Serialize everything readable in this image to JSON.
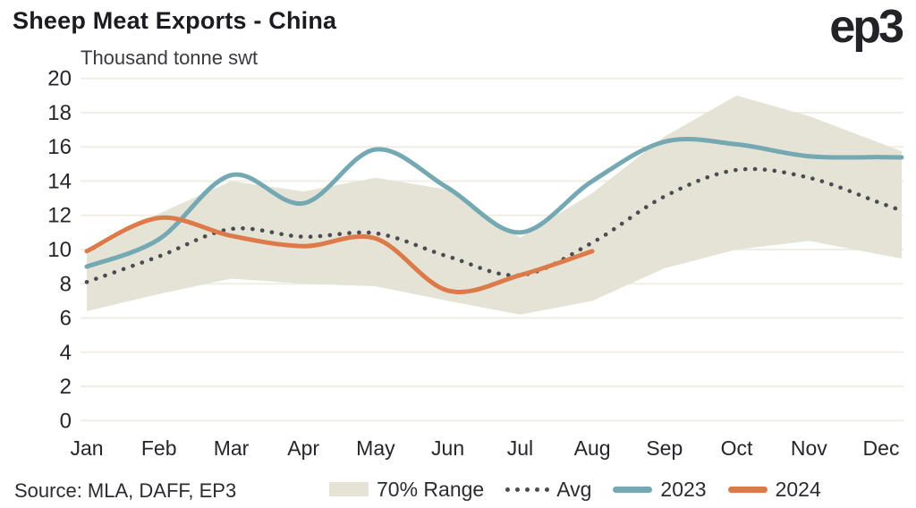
{
  "header": {
    "title": "Sheep Meat Exports - China",
    "logo": "ep3"
  },
  "source": "Source: MLA, DAFF, EP3",
  "chart_data": {
    "type": "line",
    "title": "Sheep Meat Exports - China",
    "ylabel": "Thousand tonne swt",
    "xlabel": "",
    "ylim": [
      0,
      20
    ],
    "ytick_step": 2,
    "grid": true,
    "legend_position": "bottom",
    "categories": [
      "Jan",
      "Feb",
      "Mar",
      "Apr",
      "May",
      "Jun",
      "Jul",
      "Aug",
      "Sep",
      "Oct",
      "Nov",
      "Dec"
    ],
    "band": {
      "name": "70% Range",
      "color": "#e4e3d5",
      "low": [
        6.4,
        7.4,
        8.3,
        8.0,
        7.85,
        7.0,
        6.2,
        7.0,
        8.9,
        10.0,
        10.5,
        9.7
      ],
      "high": [
        9.7,
        12.1,
        14.0,
        13.4,
        14.2,
        13.5,
        10.7,
        13.3,
        16.6,
        19.0,
        17.8,
        16.2
      ]
    },
    "series": [
      {
        "name": "Avg",
        "style": "dotted",
        "color": "#4b4b54",
        "values": [
          8.1,
          9.6,
          11.2,
          10.75,
          10.95,
          9.6,
          8.5,
          10.4,
          13.1,
          14.65,
          14.2,
          12.7
        ]
      },
      {
        "name": "2023",
        "style": "solid",
        "color": "#74a8b2",
        "values": [
          9.0,
          10.6,
          14.35,
          12.7,
          15.85,
          13.6,
          11.0,
          14.0,
          16.3,
          16.15,
          15.45,
          15.4
        ]
      },
      {
        "name": "2024",
        "style": "solid",
        "color": "#dd7a49",
        "values": [
          9.9,
          11.85,
          10.8,
          10.2,
          10.65,
          7.6,
          8.5,
          9.9,
          null,
          null,
          null,
          null
        ]
      }
    ],
    "legend": [
      {
        "label": "70% Range",
        "type": "band"
      },
      {
        "label": "Avg",
        "type": "dotted"
      },
      {
        "label": "2023",
        "type": "line-2023"
      },
      {
        "label": "2024",
        "type": "line-2024"
      }
    ],
    "colors": {
      "grid": "#f0eee3",
      "axis_text": "#26252b"
    }
  }
}
